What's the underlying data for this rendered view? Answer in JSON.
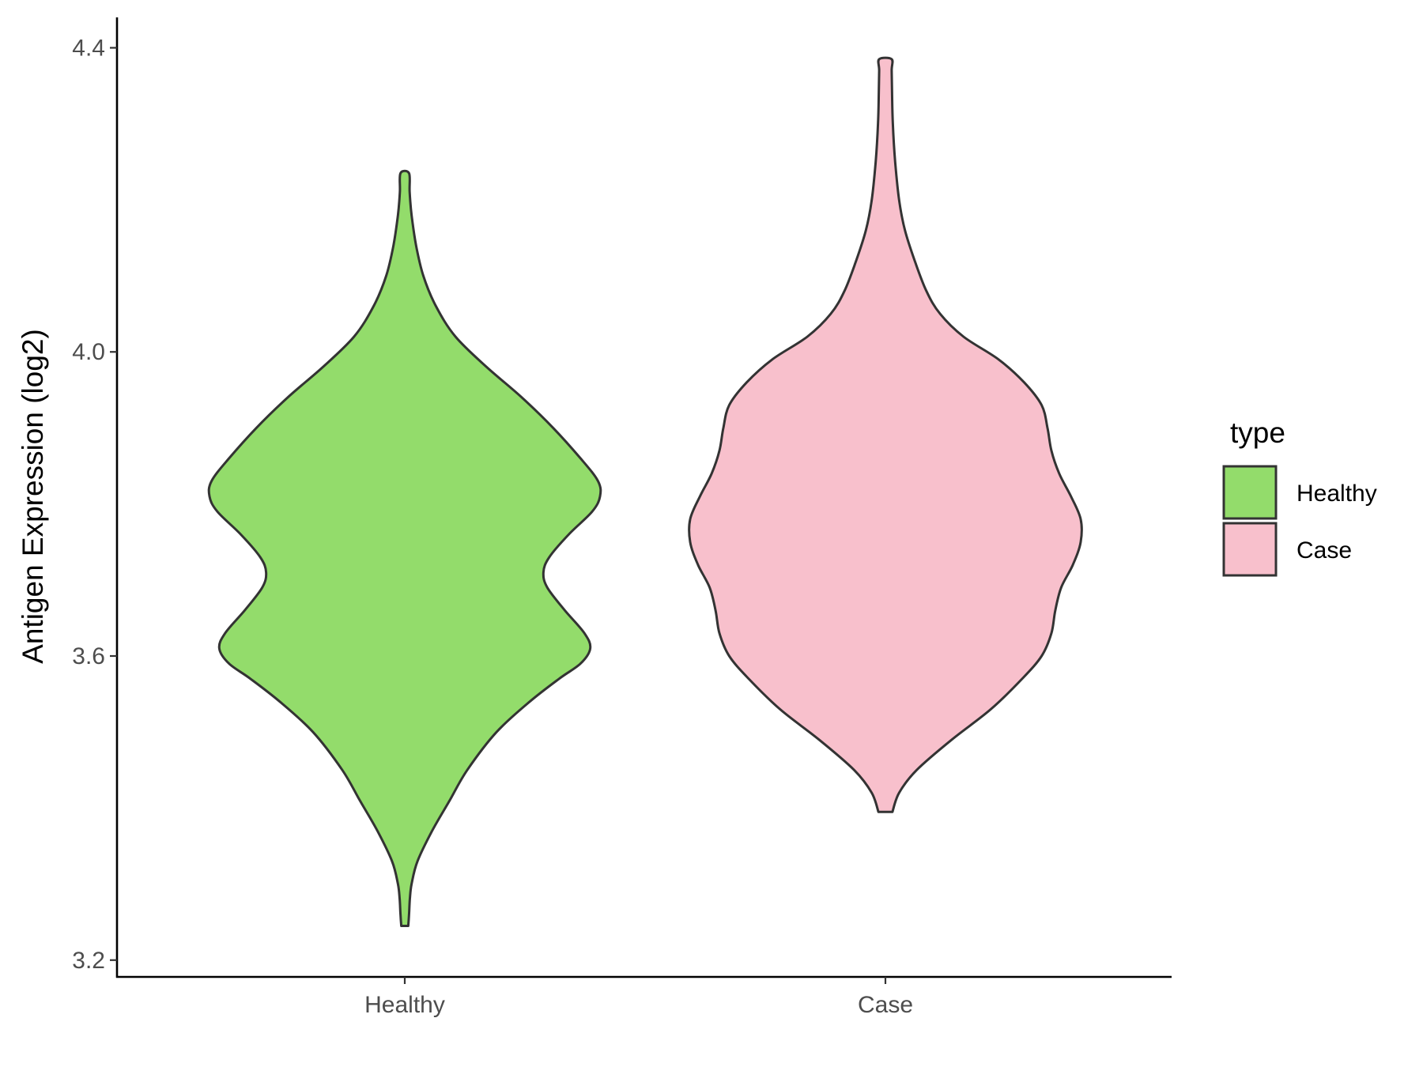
{
  "chart_data": {
    "type": "violin",
    "title": "",
    "xlabel": "",
    "ylabel": "Antigen Expression (log2)",
    "categories": [
      "Healthy",
      "Case"
    ],
    "ylim": [
      3.18,
      4.44
    ],
    "yticks": [
      3.2,
      3.6,
      4.0,
      4.4
    ],
    "ytick_labels": [
      "3.2",
      "3.6",
      "4.0",
      "4.4"
    ],
    "grid": false,
    "legend": {
      "title": "type",
      "position": "right",
      "entries": [
        {
          "label": "Healthy",
          "color": "#93dc6b"
        },
        {
          "label": "Case",
          "color": "#f8c0cc"
        }
      ]
    },
    "series": [
      {
        "category": "Healthy",
        "color": "#93dc6b",
        "y_min": 3.245,
        "y_max": 4.235,
        "density_profile": [
          [
            3.245,
            0.018
          ],
          [
            3.26,
            0.022
          ],
          [
            3.28,
            0.026
          ],
          [
            3.3,
            0.035
          ],
          [
            3.33,
            0.065
          ],
          [
            3.37,
            0.14
          ],
          [
            3.41,
            0.23
          ],
          [
            3.45,
            0.32
          ],
          [
            3.5,
            0.47
          ],
          [
            3.54,
            0.64
          ],
          [
            3.57,
            0.79
          ],
          [
            3.59,
            0.9
          ],
          [
            3.61,
            0.95
          ],
          [
            3.63,
            0.92
          ],
          [
            3.66,
            0.82
          ],
          [
            3.69,
            0.73
          ],
          [
            3.71,
            0.71
          ],
          [
            3.73,
            0.74
          ],
          [
            3.76,
            0.84
          ],
          [
            3.79,
            0.96
          ],
          [
            3.81,
            1.0
          ],
          [
            3.83,
            0.99
          ],
          [
            3.86,
            0.9
          ],
          [
            3.9,
            0.76
          ],
          [
            3.94,
            0.6
          ],
          [
            3.98,
            0.42
          ],
          [
            4.02,
            0.26
          ],
          [
            4.06,
            0.16
          ],
          [
            4.1,
            0.095
          ],
          [
            4.14,
            0.058
          ],
          [
            4.18,
            0.035
          ],
          [
            4.21,
            0.025
          ],
          [
            4.235,
            0.022
          ]
        ]
      },
      {
        "category": "Case",
        "color": "#f8c0cc",
        "y_min": 3.395,
        "y_max": 4.385,
        "density_profile": [
          [
            3.395,
            0.036
          ],
          [
            3.42,
            0.07
          ],
          [
            3.45,
            0.16
          ],
          [
            3.49,
            0.34
          ],
          [
            3.53,
            0.54
          ],
          [
            3.57,
            0.7
          ],
          [
            3.6,
            0.8
          ],
          [
            3.63,
            0.85
          ],
          [
            3.66,
            0.87
          ],
          [
            3.69,
            0.9
          ],
          [
            3.72,
            0.96
          ],
          [
            3.75,
            1.0
          ],
          [
            3.78,
            1.0
          ],
          [
            3.81,
            0.95
          ],
          [
            3.84,
            0.89
          ],
          [
            3.87,
            0.85
          ],
          [
            3.9,
            0.83
          ],
          [
            3.93,
            0.8
          ],
          [
            3.96,
            0.71
          ],
          [
            3.99,
            0.58
          ],
          [
            4.02,
            0.4
          ],
          [
            4.05,
            0.28
          ],
          [
            4.08,
            0.21
          ],
          [
            4.12,
            0.15
          ],
          [
            4.16,
            0.1
          ],
          [
            4.2,
            0.07
          ],
          [
            4.25,
            0.05
          ],
          [
            4.3,
            0.038
          ],
          [
            4.34,
            0.034
          ],
          [
            4.37,
            0.032
          ],
          [
            4.385,
            0.032
          ]
        ]
      }
    ]
  }
}
